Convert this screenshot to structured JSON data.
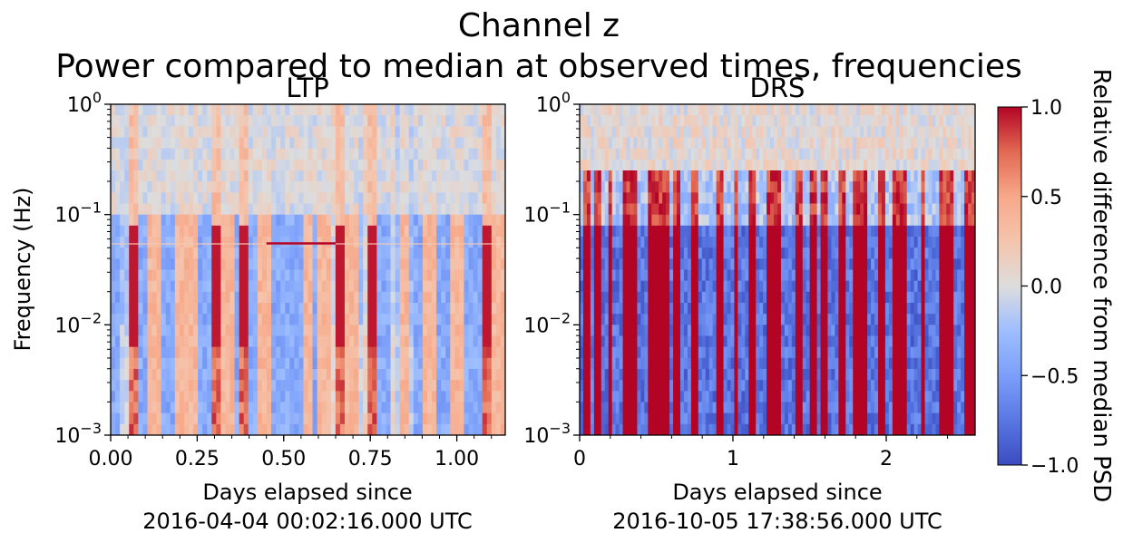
{
  "figure": {
    "title_line1": "Channel z",
    "title_line2": "Power compared to median at observed times, frequencies"
  },
  "colorbar": {
    "label": "Relative difference from median PSD",
    "range": [
      -1.0,
      1.0
    ],
    "ticks": [
      -1.0,
      -0.5,
      0.0,
      0.5,
      1.0
    ],
    "tick_labels": [
      "−1.0",
      "−0.5",
      "0.0",
      "0.5",
      "1.0"
    ],
    "colormap": "coolwarm",
    "colors": {
      "low": "#3b4cc0",
      "mid": "#dddddd",
      "high": "#b40426"
    }
  },
  "chart_data": [
    {
      "type": "heatmap",
      "title": "LTP",
      "xlabel_line1": "Days elapsed since",
      "xlabel_line2": "2016-04-04 00:02:16.000 UTC",
      "ylabel": "Frequency (Hz)",
      "xlim": [
        0.0,
        1.14
      ],
      "ylim": [
        0.001,
        1.0
      ],
      "yscale": "log",
      "xticks": [
        0.0,
        0.25,
        0.5,
        0.75,
        1.0
      ],
      "xtick_labels": [
        "0.00",
        "0.25",
        "0.50",
        "0.75",
        "1.00"
      ],
      "yticks": [
        {
          "base": "10",
          "exp": "−3"
        },
        {
          "base": "10",
          "exp": "−2"
        },
        {
          "base": "10",
          "exp": "−1"
        },
        {
          "base": "10",
          "exp": "0"
        }
      ],
      "hot_columns": [
        0.06,
        0.31,
        0.39,
        0.66,
        0.75,
        1.09
      ],
      "warm_columns": [
        0.13,
        0.2,
        0.23,
        0.34,
        0.44,
        0.57,
        0.62,
        0.7,
        0.85,
        0.92,
        1.0,
        1.12
      ],
      "cool_columns": [
        0.0,
        0.09,
        0.17,
        0.27,
        0.36,
        0.42,
        0.48,
        0.52,
        0.55,
        0.6,
        0.68,
        0.79,
        0.89,
        0.96,
        1.04,
        1.06
      ],
      "value_range": [
        -1.0,
        1.0
      ]
    },
    {
      "type": "heatmap",
      "title": "DRS",
      "xlabel_line1": "Days elapsed since",
      "xlabel_line2": "2016-10-05 17:38:56.000 UTC",
      "ylabel": "",
      "xlim": [
        0.0,
        2.58
      ],
      "ylim": [
        0.001,
        1.0
      ],
      "yscale": "log",
      "xticks": [
        0,
        1,
        2
      ],
      "xtick_labels": [
        "0",
        "1",
        "2"
      ],
      "yticks": [
        {
          "base": "10",
          "exp": "−3"
        },
        {
          "base": "10",
          "exp": "−2"
        },
        {
          "base": "10",
          "exp": "−1"
        },
        {
          "base": "10",
          "exp": "0"
        }
      ],
      "hot_columns": [
        0.04,
        0.11,
        0.2,
        0.31,
        0.35,
        0.47,
        0.52,
        0.57,
        0.63,
        0.75,
        0.92,
        1.02,
        1.12,
        1.24,
        1.3,
        1.44,
        1.52,
        1.59,
        1.72,
        1.81,
        1.85,
        1.97,
        2.06,
        2.11,
        2.24,
        2.36,
        2.41,
        2.52,
        2.56
      ],
      "value_range": [
        -1.0,
        1.0
      ]
    }
  ]
}
